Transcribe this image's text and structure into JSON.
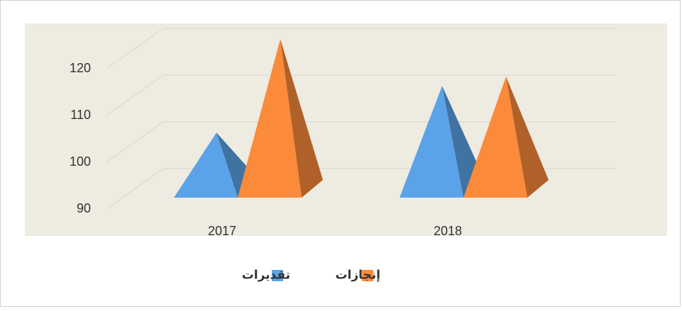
{
  "chart_data": {
    "type": "pyramid3d",
    "categories": [
      "2017",
      "2018"
    ],
    "series": [
      {
        "name": "تقديرات",
        "color": "#5ba3e8",
        "values": [
          102,
          112
        ]
      },
      {
        "name": "إنجازات",
        "color": "#fb8a3a",
        "values": [
          122,
          114
        ]
      }
    ],
    "ylim": [
      90,
      120
    ],
    "yticks": [
      90,
      100,
      110,
      120
    ],
    "grid": true
  }
}
